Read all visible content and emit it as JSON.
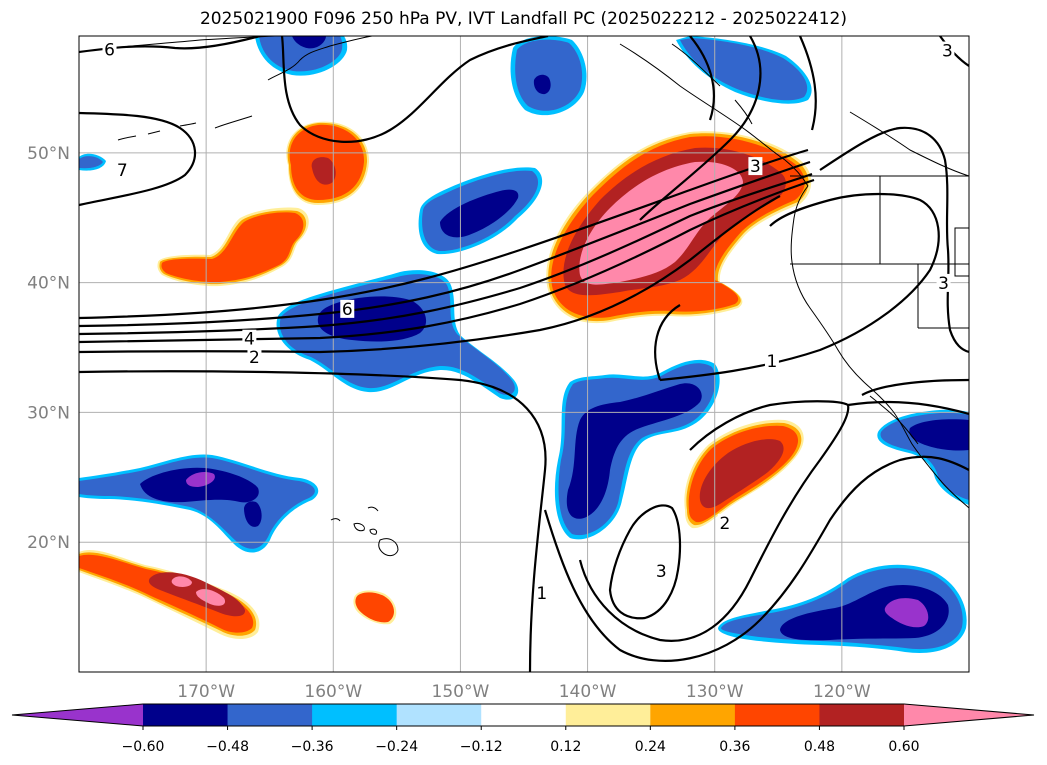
{
  "title": "2025021900 F096 250 hPa PV, IVT Landfall PC (2025022212 - 2025022412)",
  "axes": {
    "lat_ticks": [
      {
        "label": "50°N",
        "lat": 50
      },
      {
        "label": "40°N",
        "lat": 40
      },
      {
        "label": "30°N",
        "lat": 30
      },
      {
        "label": "20°N",
        "lat": 20
      }
    ],
    "lon_ticks": [
      {
        "label": "170°W",
        "lon": -170
      },
      {
        "label": "160°W",
        "lon": -160
      },
      {
        "label": "150°W",
        "lon": -150
      },
      {
        "label": "140°W",
        "lon": -140
      },
      {
        "label": "130°W",
        "lon": -130
      },
      {
        "label": "120°W",
        "lon": -120
      }
    ],
    "tick_color": "#808080",
    "extent": {
      "lon_min": -180,
      "lon_max": -110,
      "lat_min": 10,
      "lat_max": 59
    }
  },
  "colorbar": {
    "colors": [
      "#9933cc",
      "#00008b",
      "#3366cc",
      "#00bfff",
      "#b0e2ff",
      "#ffffff",
      "#ffee99",
      "#ffa500",
      "#ff4500",
      "#b22222",
      "#ff88aa"
    ],
    "tick_labels": [
      "−0.60",
      "−0.48",
      "−0.36",
      "−0.24",
      "−0.12",
      "0.12",
      "0.24",
      "0.36",
      "0.48",
      "0.60"
    ]
  },
  "contour_labels": [
    {
      "text": "6",
      "lon": -177.6,
      "lat": 57.9
    },
    {
      "text": "7",
      "lon": -176.6,
      "lat": 48.6
    },
    {
      "text": "6",
      "lon": -158.9,
      "lat": 37.9
    },
    {
      "text": "4",
      "lon": -166.6,
      "lat": 35.6
    },
    {
      "text": "2",
      "lon": -166.2,
      "lat": 34.2
    },
    {
      "text": "3",
      "lon": -126.8,
      "lat": 48.9
    },
    {
      "text": "1",
      "lon": -125.5,
      "lat": 33.9
    },
    {
      "text": "2",
      "lon": -129.2,
      "lat": 21.4
    },
    {
      "text": "3",
      "lon": -134.2,
      "lat": 17.7
    },
    {
      "text": "1",
      "lon": -143.6,
      "lat": 16.0
    },
    {
      "text": "3",
      "lon": -111.7,
      "lat": 57.8
    },
    {
      "text": "3",
      "lon": -112.0,
      "lat": 39.9
    }
  ]
}
